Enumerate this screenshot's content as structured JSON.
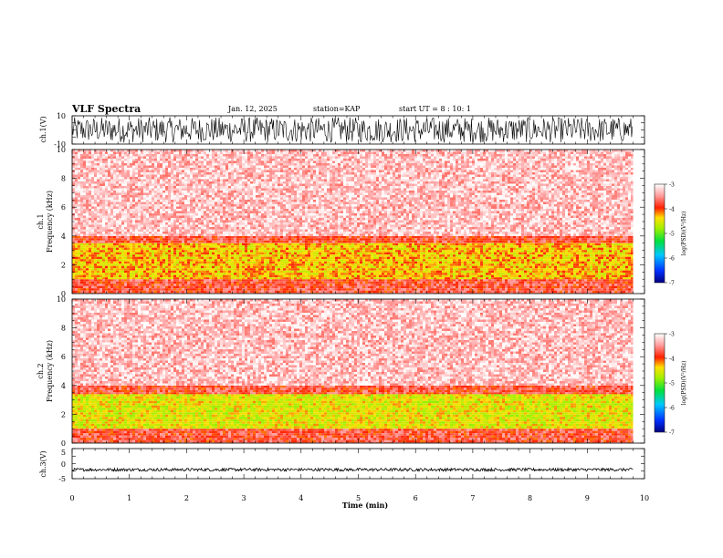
{
  "header": {
    "title": "VLF Spectra",
    "date": "Jan. 12, 2025",
    "station": "station=KAP",
    "start": "start UT =  8 : 10: 1"
  },
  "chart_data": [
    {
      "type": "line",
      "panel": "ch1-waveform",
      "ylabel": "ch.1(V)",
      "ylim": [
        -10,
        10
      ],
      "yticks": [
        "10",
        "-10"
      ],
      "xlim": [
        0,
        10
      ],
      "description_values": {
        "amplitude_range_V": [
          -9,
          9
        ],
        "duration_min": 9.8
      }
    },
    {
      "type": "heatmap",
      "panel": "ch1-spectrogram",
      "ylabel_line1": "ch.1",
      "ylabel_line2": "Frequency (kHz)",
      "ylim": [
        0,
        10
      ],
      "yticks": [
        "0",
        "2",
        "4",
        "6",
        "8",
        "10"
      ],
      "xlim": [
        0,
        10
      ],
      "colorbar": {
        "label": "log(PSD)(V²/Hz)",
        "range": [
          -7,
          -3
        ],
        "ticks": [
          "-3",
          "-4",
          "-5",
          "-6",
          "-7"
        ]
      },
      "bands_kHz": [
        {
          "from": 0,
          "to": 1.0,
          "level": -3.8
        },
        {
          "from": 1.0,
          "to": 3.5,
          "level": -4.3
        },
        {
          "from": 3.5,
          "to": 4.0,
          "level": -3.8
        },
        {
          "from": 4.0,
          "to": 10,
          "level": -3.3
        }
      ]
    },
    {
      "type": "heatmap",
      "panel": "ch2-spectrogram",
      "ylabel_line1": "ch.2",
      "ylabel_line2": "Frequency (kHz)",
      "ylim": [
        0,
        10
      ],
      "yticks": [
        "0",
        "2",
        "4",
        "6",
        "8",
        "10"
      ],
      "xlim": [
        0,
        10
      ],
      "colorbar": {
        "label": "log(PSD)(V²/Hz)",
        "range": [
          -7,
          -3
        ],
        "ticks": [
          "-3",
          "-4",
          "-5",
          "-6",
          "-7"
        ]
      },
      "bands_kHz": [
        {
          "from": 0,
          "to": 1.0,
          "level": -3.8
        },
        {
          "from": 1.0,
          "to": 3.4,
          "level": -4.5
        },
        {
          "from": 3.4,
          "to": 4.0,
          "level": -3.8
        },
        {
          "from": 4.0,
          "to": 10,
          "level": -3.3
        }
      ]
    },
    {
      "type": "line",
      "panel": "ch3-waveform",
      "ylabel": "ch.3(V)",
      "ylim": [
        -5,
        5
      ],
      "yticks": [
        "5",
        "0",
        "-5"
      ],
      "xlim": [
        0,
        10
      ],
      "xlabel": "Time (min)",
      "xticks": [
        "0",
        "1",
        "2",
        "3",
        "4",
        "5",
        "6",
        "7",
        "8",
        "9",
        "10"
      ],
      "description_values": {
        "centre_V": -2,
        "amplitude_range_V": [
          -2.5,
          -1.5
        ],
        "duration_min": 9.8
      }
    }
  ]
}
